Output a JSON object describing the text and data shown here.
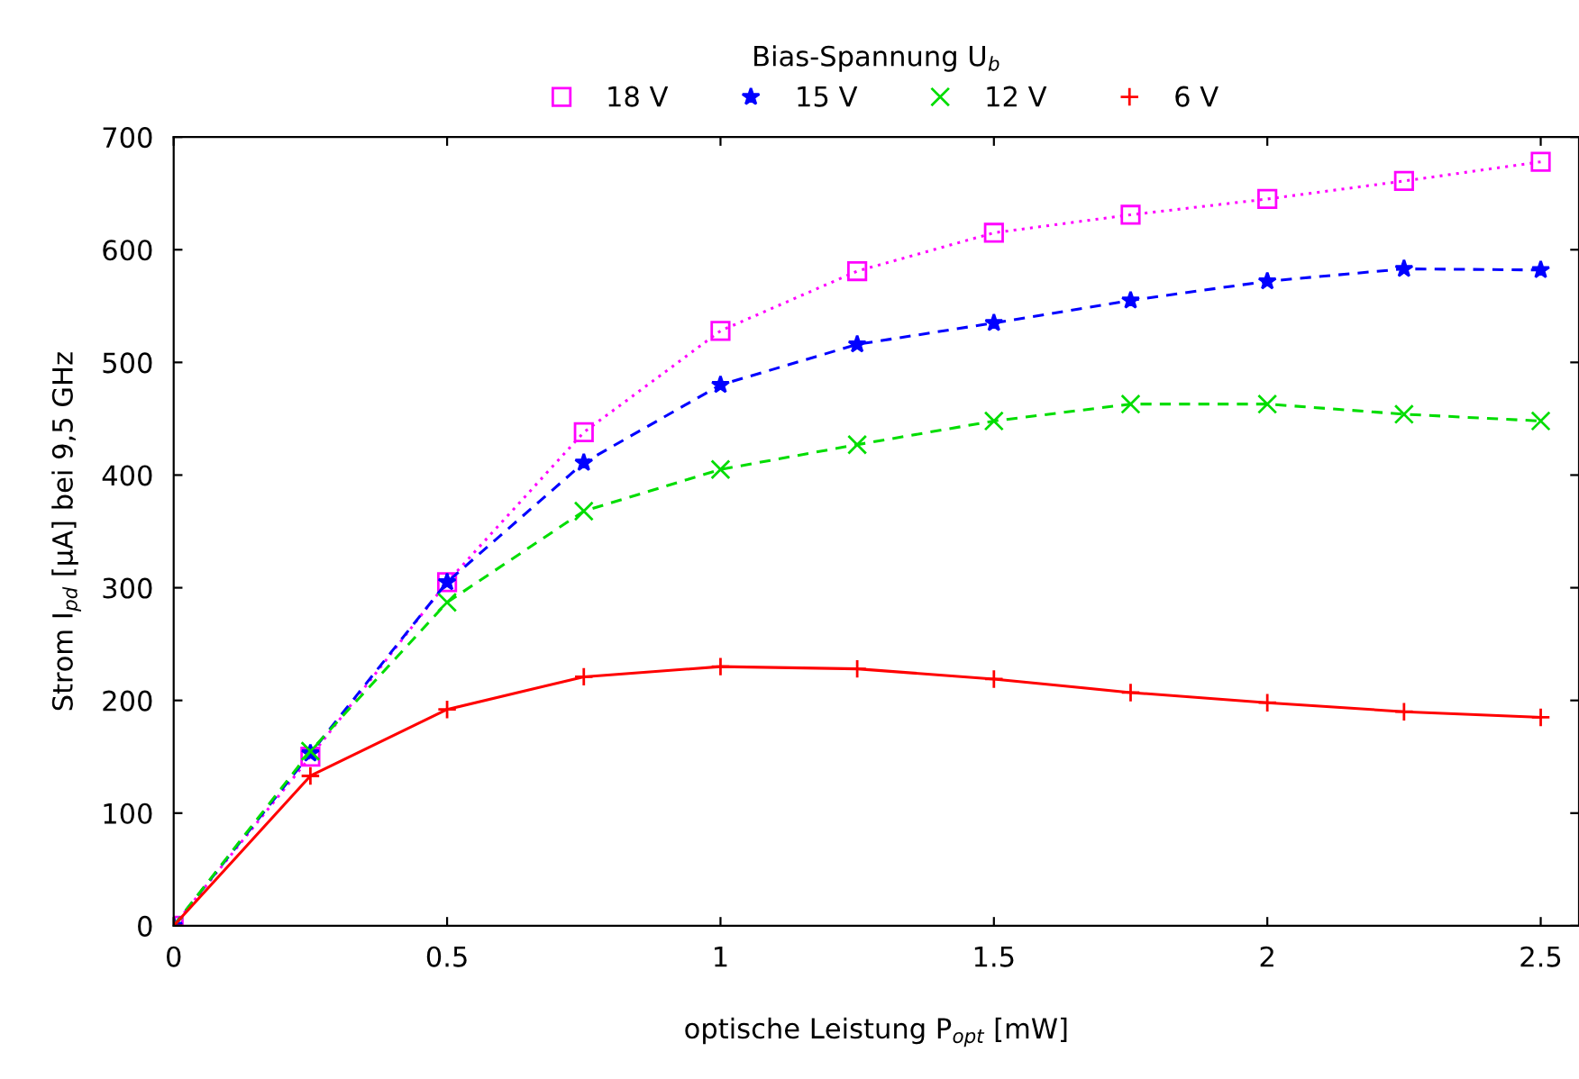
{
  "chart_data": {
    "type": "line",
    "xlabel": "optische Leistung P$_{opt}$ [mW]",
    "ylabel": "Strom I$_{pd}$ [μA] bei 9,5 GHz",
    "legend_title": "Bias-Spannung U$_{b}$",
    "x": [
      0,
      0.25,
      0.5,
      0.75,
      1,
      1.25,
      1.5,
      1.75,
      2,
      2.25,
      2.5
    ],
    "series": [
      {
        "name": "18 V",
        "color": "#ff00ff",
        "marker": "square",
        "line_style": "dotted",
        "values": [
          0,
          150,
          305,
          438,
          528,
          581,
          615,
          631,
          645,
          661,
          678
        ]
      },
      {
        "name": "15 V",
        "color": "#0000ff",
        "marker": "star",
        "line_style": "dashed",
        "values": [
          0,
          153,
          305,
          411,
          480,
          516,
          535,
          555,
          572,
          583,
          582
        ]
      },
      {
        "name": "12 V",
        "color": "#00dd00",
        "marker": "cross",
        "line_style": "dashed",
        "values": [
          0,
          155,
          287,
          368,
          405,
          427,
          448,
          463,
          463,
          454,
          448
        ]
      },
      {
        "name": "6 V",
        "color": "#ff0000",
        "marker": "plus",
        "line_style": "solid",
        "values": [
          0,
          133,
          192,
          221,
          230,
          228,
          219,
          207,
          198,
          190,
          185
        ]
      }
    ],
    "xlim": [
      0,
      2.57
    ],
    "xticks": [
      0,
      0.5,
      1,
      1.5,
      2,
      2.5
    ],
    "ylim": [
      0,
      700
    ],
    "yticks": [
      0,
      100,
      200,
      300,
      400,
      500,
      600,
      700
    ],
    "grid": false,
    "legend": "top"
  }
}
